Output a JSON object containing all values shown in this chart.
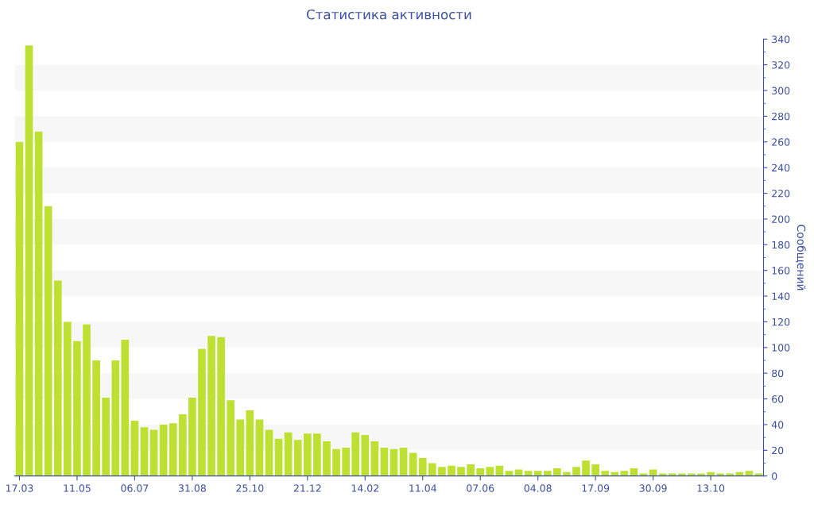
{
  "chart_data": {
    "type": "bar",
    "title": "Статистика активности",
    "ylabel": "Сообщений",
    "categories": [
      "17.03",
      null,
      null,
      null,
      null,
      null,
      "11.05",
      null,
      null,
      null,
      null,
      null,
      "06.07",
      null,
      null,
      null,
      null,
      null,
      "31.08",
      null,
      null,
      null,
      null,
      null,
      "25.10",
      null,
      null,
      null,
      null,
      null,
      "21.12",
      null,
      null,
      null,
      null,
      null,
      "14.02",
      null,
      null,
      null,
      null,
      null,
      "11.04",
      null,
      null,
      null,
      null,
      null,
      "07.06",
      null,
      null,
      null,
      null,
      null,
      "04.08",
      null,
      null,
      null,
      null,
      null,
      "17.09",
      null,
      null,
      null,
      null,
      null,
      "30.09",
      null,
      null,
      null,
      null,
      null,
      "13.10",
      null,
      null,
      null,
      null,
      null
    ],
    "values": [
      260,
      335,
      268,
      210,
      152,
      120,
      105,
      118,
      90,
      61,
      90,
      106,
      43,
      38,
      36,
      40,
      41,
      48,
      61,
      99,
      109,
      108,
      59,
      44,
      51,
      44,
      36,
      29,
      34,
      28,
      33,
      33,
      27,
      21,
      22,
      34,
      32,
      27,
      22,
      21,
      22,
      18,
      14,
      10,
      7,
      8,
      7,
      9,
      6,
      7,
      8,
      4,
      5,
      4,
      4,
      4,
      6,
      3,
      7,
      12,
      9,
      4,
      3,
      4,
      6,
      2,
      5,
      2,
      2,
      2,
      2,
      2,
      3,
      2,
      2,
      3,
      4,
      2
    ],
    "color": "#bde032",
    "ylim": [
      0,
      340
    ],
    "yticks": [
      0,
      20,
      40,
      60,
      80,
      100,
      120,
      140,
      160,
      180,
      200,
      220,
      240,
      260,
      280,
      300,
      320,
      340
    ],
    "bands": [
      {
        "axis": "y",
        "from": 20,
        "to": 40,
        "color": "#f7f7f7"
      },
      {
        "axis": "y",
        "from": 60,
        "to": 80,
        "color": "#f7f7f7"
      },
      {
        "axis": "y",
        "from": 100,
        "to": 120,
        "color": "#f7f7f7"
      },
      {
        "axis": "y",
        "from": 140,
        "to": 160,
        "color": "#f7f7f7"
      },
      {
        "axis": "y",
        "from": 180,
        "to": 200,
        "color": "#f7f7f7"
      },
      {
        "axis": "y",
        "from": 220,
        "to": 240,
        "color": "#f7f7f7"
      },
      {
        "axis": "y",
        "from": 260,
        "to": 280,
        "color": "#f7f7f7"
      },
      {
        "axis": "y",
        "from": 300,
        "to": 320,
        "color": "#f7f7f7"
      }
    ]
  }
}
